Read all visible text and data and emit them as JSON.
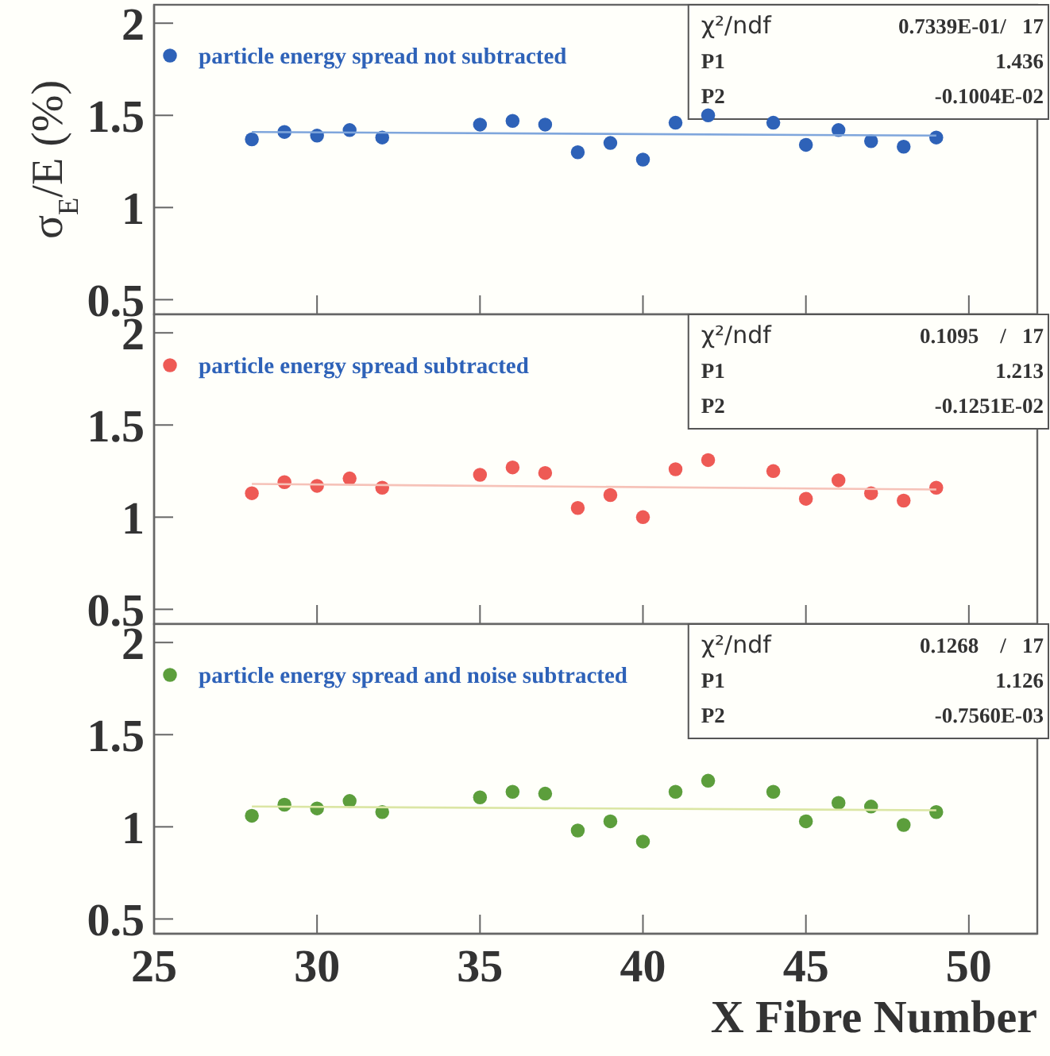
{
  "chart_data": [
    {
      "type": "scatter",
      "ylabel": "σ$_{E}$/E (%)",
      "xlim": [
        25,
        52.1
      ],
      "ylim": [
        0.42,
        2.1
      ],
      "yticks": [
        0.5,
        1,
        1.5,
        2
      ],
      "xticks": [
        25,
        30,
        35,
        40,
        45,
        50
      ],
      "tick_labels": "y",
      "legend": "top left",
      "marker": "circle",
      "grid": false,
      "annotations": [
        "χ²/ndf",
        "0.7339E-01/   17",
        "P1",
        "1.436",
        "P2",
        "-0.1004E-02"
      ],
      "series": [
        {
          "name": "particle energy spread not subtracted",
          "color": "#2e62b8",
          "x": [
            28,
            29,
            30,
            31,
            32,
            35,
            36,
            37,
            38,
            39,
            40,
            41,
            42,
            44,
            45,
            46,
            47,
            48,
            49
          ],
          "values": [
            1.37,
            1.41,
            1.39,
            1.42,
            1.38,
            1.45,
            1.47,
            1.45,
            1.3,
            1.35,
            1.26,
            1.46,
            1.5,
            1.46,
            1.34,
            1.42,
            1.36,
            1.33,
            1.38
          ]
        },
        {
          "type": "line",
          "color": "#7fa6dc",
          "marker": "none",
          "x": [
            28,
            49
          ],
          "values": [
            1.41,
            1.39
          ]
        }
      ]
    },
    {
      "type": "scatter",
      "xlim": [
        25,
        52.1
      ],
      "ylim": [
        0.42,
        2.1
      ],
      "yticks": [
        0.5,
        1,
        1.5,
        2
      ],
      "xticks": [
        25,
        30,
        35,
        40,
        45,
        50
      ],
      "tick_labels": "y",
      "legend": "top left",
      "marker": "circle",
      "grid": false,
      "annotations": [
        "χ²/ndf",
        "0.1095    /   17",
        "P1",
        "1.213",
        "P2",
        "-0.1251E-02"
      ],
      "series": [
        {
          "name": "particle energy spread subtracted",
          "color": "#ee5a55",
          "x": [
            28,
            29,
            30,
            31,
            32,
            35,
            36,
            37,
            38,
            39,
            40,
            41,
            42,
            44,
            45,
            46,
            47,
            48,
            49
          ],
          "values": [
            1.13,
            1.19,
            1.17,
            1.21,
            1.16,
            1.23,
            1.27,
            1.24,
            1.05,
            1.12,
            1.0,
            1.26,
            1.31,
            1.25,
            1.1,
            1.2,
            1.13,
            1.09,
            1.16
          ]
        },
        {
          "type": "line",
          "color": "#f6c2b8",
          "marker": "none",
          "x": [
            28,
            49
          ],
          "values": [
            1.18,
            1.15
          ]
        }
      ]
    },
    {
      "type": "scatter",
      "xlabel": "X Fibre Number",
      "xlim": [
        25,
        52.1
      ],
      "ylim": [
        0.42,
        2.1
      ],
      "yticks": [
        0.5,
        1,
        1.5,
        2
      ],
      "xticks": [
        25,
        30,
        35,
        40,
        45,
        50
      ],
      "legend": "top left",
      "marker": "circle",
      "grid": false,
      "annotations": [
        "χ²/ndf",
        "0.1268    /   17",
        "P1",
        "1.126",
        "P2",
        "-0.7560E-03"
      ],
      "series": [
        {
          "name": "particle energy spread and noise subtracted",
          "color": "#5c9e3c",
          "x": [
            28,
            29,
            30,
            31,
            32,
            35,
            36,
            37,
            38,
            39,
            40,
            41,
            42,
            44,
            45,
            46,
            47,
            48,
            49
          ],
          "values": [
            1.06,
            1.12,
            1.1,
            1.14,
            1.08,
            1.16,
            1.19,
            1.18,
            0.98,
            1.03,
            0.92,
            1.19,
            1.25,
            1.19,
            1.03,
            1.13,
            1.11,
            1.01,
            1.08
          ]
        },
        {
          "type": "line",
          "color": "#dbe6a4",
          "marker": "none",
          "x": [
            28,
            49
          ],
          "values": [
            1.11,
            1.09
          ]
        }
      ]
    }
  ]
}
